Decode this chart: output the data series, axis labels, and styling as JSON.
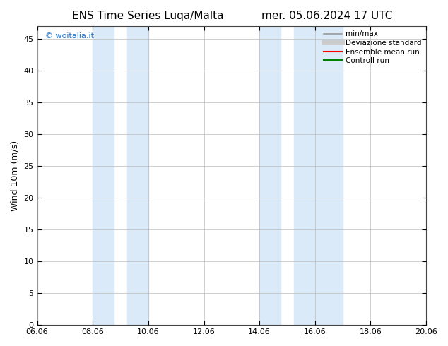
{
  "title": "ENS Time Series Luqa/Malta",
  "title_right": "mer. 05.06.2024 17 UTC",
  "ylabel": "Wind 10m (m/s)",
  "xlabel_ticks": [
    "06.06",
    "08.06",
    "10.06",
    "12.06",
    "14.06",
    "16.06",
    "18.06",
    "20.06"
  ],
  "xtick_positions": [
    0,
    2,
    4,
    6,
    8,
    10,
    12,
    14
  ],
  "xlim": [
    0,
    14
  ],
  "ylim": [
    0,
    47
  ],
  "yticks": [
    0,
    5,
    10,
    15,
    20,
    25,
    30,
    35,
    40,
    45
  ],
  "watermark": "© woitalia.it",
  "watermark_color": "#1a6fcc",
  "bg_color": "#ffffff",
  "band_color": "#daeaf8",
  "night_bands": [
    [
      2.0,
      2.67
    ],
    [
      2.67,
      4.0
    ],
    [
      8.0,
      8.67
    ],
    [
      8.67,
      11.0
    ]
  ],
  "legend_entries": [
    {
      "label": "min/max",
      "color": "#999999",
      "lw": 1.2,
      "ls": "-"
    },
    {
      "label": "Deviazione standard",
      "color": "#cccccc",
      "lw": 5,
      "ls": "-"
    },
    {
      "label": "Ensemble mean run",
      "color": "#ff0000",
      "lw": 1.5,
      "ls": "-"
    },
    {
      "label": "Controll run",
      "color": "#008000",
      "lw": 1.5,
      "ls": "-"
    }
  ],
  "font_family": "DejaVu Sans",
  "title_fontsize": 11,
  "axis_fontsize": 9,
  "tick_fontsize": 8,
  "legend_fontsize": 7.5
}
